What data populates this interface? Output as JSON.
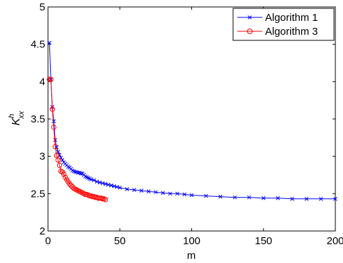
{
  "chart_data": {
    "type": "line",
    "xlabel": "m",
    "ylabel": "K_xx^h",
    "xlim": [
      0,
      200
    ],
    "ylim": [
      2,
      5
    ],
    "xticks": [
      0,
      50,
      100,
      150,
      200
    ],
    "yticks": [
      2,
      2.5,
      3,
      3.5,
      4,
      4.5,
      5
    ],
    "legend_position": "top-right",
    "grid": false,
    "series": [
      {
        "name": "Algorithm 1",
        "color": "#0000ff",
        "marker": "x",
        "x": [
          1,
          2,
          3,
          4,
          5,
          6,
          7,
          8,
          9,
          10,
          11,
          12,
          13,
          14,
          15,
          16,
          17,
          18,
          19,
          20,
          21,
          22,
          23,
          24,
          25,
          26,
          27,
          28,
          29,
          30,
          32,
          34,
          36,
          38,
          40,
          42,
          44,
          46,
          48,
          50,
          55,
          60,
          65,
          70,
          75,
          80,
          85,
          90,
          95,
          100,
          110,
          120,
          130,
          140,
          150,
          160,
          170,
          180,
          190,
          200
        ],
        "y": [
          4.52,
          4.03,
          3.66,
          3.47,
          3.22,
          3.12,
          3.06,
          3.02,
          2.98,
          2.95,
          2.92,
          2.9,
          2.88,
          2.86,
          2.85,
          2.83,
          2.81,
          2.8,
          2.79,
          2.79,
          2.78,
          2.78,
          2.77,
          2.77,
          2.75,
          2.73,
          2.72,
          2.71,
          2.7,
          2.69,
          2.68,
          2.66,
          2.65,
          2.64,
          2.63,
          2.62,
          2.61,
          2.6,
          2.59,
          2.58,
          2.56,
          2.55,
          2.54,
          2.53,
          2.52,
          2.51,
          2.5,
          2.5,
          2.49,
          2.48,
          2.47,
          2.46,
          2.45,
          2.45,
          2.44,
          2.44,
          2.43,
          2.43,
          2.43,
          2.43
        ]
      },
      {
        "name": "Algorithm 3",
        "color": "#ff0000",
        "marker": "o",
        "x": [
          1,
          2,
          3,
          4,
          5,
          6,
          7,
          8,
          9,
          10,
          11,
          12,
          13,
          14,
          15,
          16,
          17,
          18,
          19,
          20,
          21,
          22,
          23,
          24,
          25,
          26,
          27,
          28,
          29,
          30,
          31,
          32,
          33,
          34,
          35,
          36,
          37,
          38,
          39,
          40
        ],
        "y": [
          4.03,
          4.03,
          3.63,
          3.39,
          3.13,
          3.01,
          2.95,
          2.88,
          2.8,
          2.79,
          2.76,
          2.72,
          2.69,
          2.66,
          2.63,
          2.61,
          2.59,
          2.57,
          2.56,
          2.55,
          2.54,
          2.53,
          2.52,
          2.51,
          2.5,
          2.49,
          2.49,
          2.48,
          2.47,
          2.47,
          2.46,
          2.46,
          2.45,
          2.45,
          2.44,
          2.44,
          2.44,
          2.43,
          2.43,
          2.42
        ]
      }
    ]
  }
}
